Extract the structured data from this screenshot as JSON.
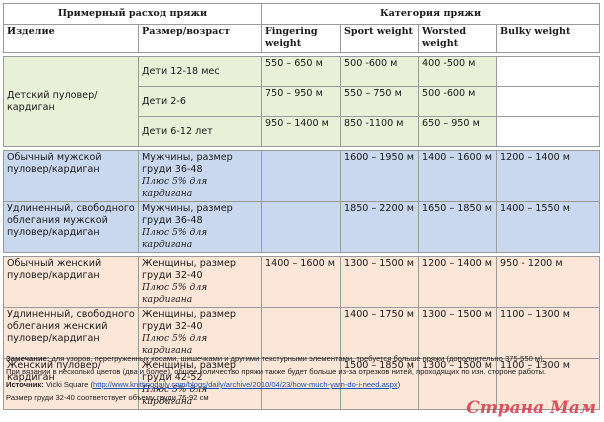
{
  "header": {
    "consumption": "Примерный расход пряжи",
    "category": "Категория пряжи",
    "item": "Изделие",
    "size": "Размер/возраст",
    "weights": [
      "Fingering weight",
      "Sport weight",
      "Worsted weight",
      "Bulky weight"
    ]
  },
  "groups": {
    "kids_item": "Детский пуловер/кардиган",
    "kids_rows": [
      {
        "size": "Дети 12-18 мес",
        "v": [
          "550 – 650 м",
          "500 -600 м",
          "400 -500 м",
          ""
        ]
      },
      {
        "size": "Дети 2-6",
        "v": [
          "750 – 950 м",
          "550 – 750 м",
          "500 -600 м",
          ""
        ]
      },
      {
        "size": "Дети 6-12 лет",
        "v": [
          "950 – 1400 м",
          "850 -1100 м",
          "650 – 950 м",
          ""
        ]
      }
    ],
    "men_rows": [
      {
        "item": "Обычный мужской пуловер/кардиган",
        "size": "Мужчины, размер груди 36-48",
        "extra": "Плюс 5% для кардигана",
        "v": [
          "",
          "1600 – 1950 м",
          "1400 – 1600 м",
          "1200 – 1400 м"
        ]
      },
      {
        "item": "Удлиненный, свободного облегания мужской пуловер/кардиган",
        "size": "Мужчины, размер груди 36-48",
        "extra": "Плюс 5% для кардигана",
        "v": [
          "",
          "1850 – 2200 м",
          "1650 – 1850 м",
          "1400 – 1550 м"
        ]
      }
    ],
    "women_rows": [
      {
        "item": "Обычный женский пуловер/кардиган",
        "size": "Женщины, размер груди 32-40",
        "extra": "Плюс 5% для кардигана",
        "v": [
          "1400 – 1600 м",
          "1300 – 1500 м",
          "1200 – 1400 м",
          "950 - 1200 м"
        ]
      },
      {
        "item": "Удлиненный, свободного облегания женский пуловер/кардиган",
        "size": "Женщины, размер груди 32-40",
        "extra": "Плюс 5% для кардигана",
        "v": [
          "",
          "1400 – 1750 м",
          "1300 – 1500 м",
          "1100 – 1300 м"
        ]
      },
      {
        "item": "Женский пуловер/кардиган",
        "size": "Женщины, размер груди 42-52",
        "extra": "Плюс 5% для кардигана",
        "v": [
          "",
          "1500 – 1850 м",
          "1300 – 1500 м",
          "1100 – 1300 м"
        ]
      }
    ]
  },
  "notes": {
    "remark_label": "Замечание:",
    "remark": " для узоров, перегруженных косами, шишечками и другими текстурными элементами, требуется больше пряжи (дополнительно 375-550 м).",
    "multicolor": "При вязании в несколько цветов (два и более), общее количество пряжи также будет больше из-за отрезков нитей, проходящих по изн. стороне работы.",
    "source_label": "Источник:",
    "source_author": " Vicki Square (",
    "source_link": "http://www.knittingdaily.com/blogs/daily/archive/2010/04/23/how-much-yarn-do-i-need.aspx",
    "source_end": ")",
    "chest": "Размер груди 32-40 соответствует объему груди 76-92 см"
  },
  "watermark": "Страна Мам",
  "colors": {
    "kids": "#e9f0d8",
    "men": "#c9d8ee",
    "women": "#fbe6d8"
  }
}
